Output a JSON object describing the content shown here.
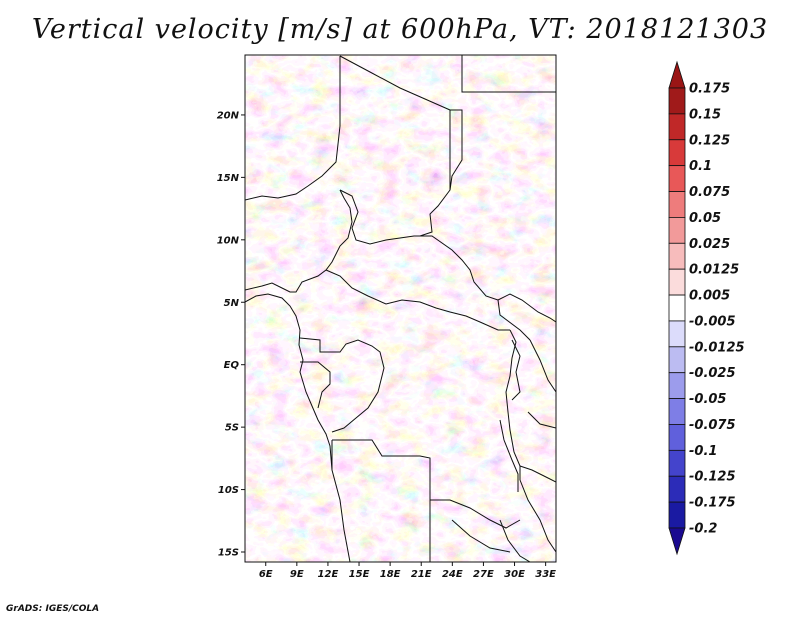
{
  "title": "Vertical velocity [m/s] at 600hPa, VT: 2018121303",
  "footer": "GrADS: IGES/COLA",
  "map": {
    "lat_labels": [
      "20N",
      "15N",
      "10N",
      "5N",
      "EQ",
      "5S",
      "10S",
      "15S"
    ],
    "lat_values": [
      20,
      15,
      10,
      5,
      0,
      -5,
      -10,
      -15
    ],
    "lon_labels": [
      "6E",
      "9E",
      "12E",
      "15E",
      "18E",
      "21E",
      "24E",
      "27E",
      "30E",
      "33E"
    ],
    "lon_values": [
      6,
      9,
      12,
      15,
      18,
      21,
      24,
      27,
      30,
      33
    ],
    "extent": {
      "lon_min": 4,
      "lon_max": 34,
      "lat_min": -15.8,
      "lat_max": 24.8
    },
    "field": "vertical velocity",
    "units": "m/s",
    "level": "600hPa",
    "valid_time": "2018121303"
  },
  "colorbar": {
    "labels": [
      "0.175",
      "0.15",
      "0.125",
      "0.1",
      "0.075",
      "0.05",
      "0.025",
      "0.0125",
      "0.005",
      "-0.005",
      "-0.0125",
      "-0.025",
      "-0.05",
      "-0.075",
      "-0.1",
      "-0.125",
      "-0.175",
      "-0.2"
    ],
    "colors": [
      "#a01a1a",
      "#c02828",
      "#d83a3a",
      "#e85858",
      "#ee7c7c",
      "#f29a9a",
      "#f7bcbc",
      "#fbdcdc",
      "#ffffff",
      "#dcdcfb",
      "#bcbcf2",
      "#9c9cec",
      "#7e7ee6",
      "#6060dc",
      "#4444cc",
      "#2c2cb8",
      "#1a1aa2"
    ],
    "top_arrow_color": "#9a1515",
    "bottom_arrow_color": "#1a0a90"
  }
}
